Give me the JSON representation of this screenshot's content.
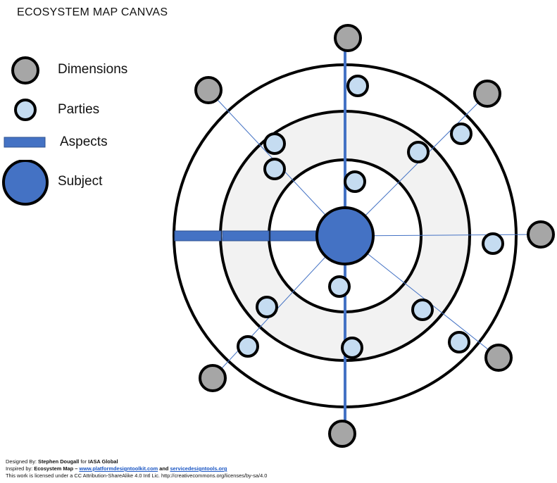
{
  "title": "ECOSYSTEM MAP CANVAS",
  "legend": {
    "dimensions": "Dimensions",
    "parties": "Parties",
    "aspects": "Aspects",
    "subject": "Subject"
  },
  "colors": {
    "dimension_fill": "#a6a6a6",
    "party_fill": "#c5dcf1",
    "aspect_fill": "#4472c4",
    "subject_fill": "#4472c4",
    "middle_band_fill": "#f2f2f2",
    "ring_stroke": "#000000",
    "spoke_stroke": "#4472c4"
  },
  "footer": {
    "designed_prefix": "Designed By: ",
    "designer": "Stephen Dougall",
    "designed_for": " for ",
    "org": "IASA Global",
    "inspired_prefix": "Inspired by: ",
    "inspired_source": "Ecosystem Map",
    "inspired_dash": " – ",
    "link1": "www.platformdesigntoolkit.com",
    "and": "  and  ",
    "link2": "servicedesigntools.org",
    "license": "This work is licensed under a CC Attribution-ShareAlike 4.0 Intl Lic. http://creativecommons.org/licenses/by-sa/4.0"
  }
}
